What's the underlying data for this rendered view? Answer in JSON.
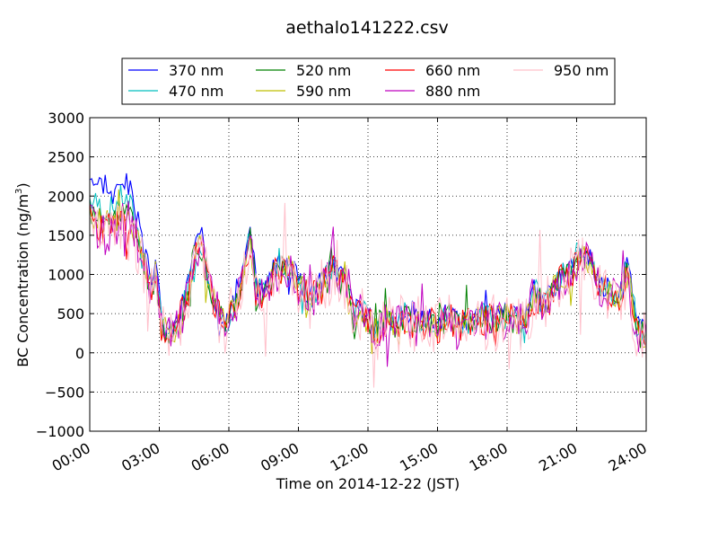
{
  "chart_data": {
    "type": "line",
    "title": "aethalo141222.csv",
    "xlabel": "Time on 2014-12-22 (JST)",
    "ylabel": "BC Concentration (ng/m",
    "ylabel_sup": "3",
    "ylabel_close": ")",
    "xlim": [
      0,
      24
    ],
    "ylim": [
      -1000,
      3000
    ],
    "x_ticks": [
      0,
      3,
      6,
      9,
      12,
      15,
      18,
      21,
      24
    ],
    "x_tick_labels": [
      "00:00",
      "03:00",
      "06:00",
      "09:00",
      "12:00",
      "15:00",
      "18:00",
      "21:00",
      "24:00"
    ],
    "y_ticks": [
      -1000,
      -500,
      0,
      500,
      1000,
      1500,
      2000,
      2500,
      3000
    ],
    "y_tick_labels": [
      "−1000",
      "−500",
      "0",
      "500",
      "1000",
      "1500",
      "2000",
      "2500",
      "3000"
    ],
    "grid": true,
    "legend_position": "top",
    "key_times": [
      0,
      0.3,
      0.7,
      1.0,
      1.4,
      1.8,
      2.0,
      2.3,
      2.6,
      2.9,
      3.1,
      3.4,
      3.8,
      4.2,
      4.5,
      4.8,
      5.2,
      5.6,
      5.9,
      6.2,
      6.5,
      6.9,
      7.2,
      7.6,
      8.0,
      8.5,
      9.0,
      9.5,
      10.0,
      10.5,
      11.0,
      11.4,
      11.7,
      12.0,
      12.4,
      12.8,
      13.2,
      13.6,
      14.0,
      14.5,
      15.0,
      15.5,
      16.0,
      16.5,
      17.0,
      17.5,
      18.0,
      18.4,
      18.8,
      19.2,
      19.6,
      20.0,
      20.4,
      20.8,
      21.2,
      21.6,
      22.0,
      22.4,
      22.8,
      23.2,
      23.6,
      24.0
    ],
    "series": [
      {
        "name": "370 nm",
        "color": "#0000ff",
        "amp": 160,
        "seed": 3,
        "values": [
          2300,
          2150,
          2200,
          1950,
          2250,
          2050,
          1800,
          1300,
          1000,
          1050,
          350,
          300,
          400,
          850,
          1350,
          1500,
          900,
          550,
          400,
          650,
          850,
          1550,
          800,
          850,
          1100,
          1150,
          950,
          750,
          900,
          1100,
          1000,
          550,
          600,
          450,
          300,
          500,
          400,
          500,
          450,
          450,
          400,
          500,
          400,
          450,
          500,
          450,
          500,
          450,
          500,
          850,
          650,
          850,
          1000,
          1100,
          1300,
          1250,
          900,
          800,
          750,
          1350,
          350,
          250
        ]
      },
      {
        "name": "470 nm",
        "color": "#00bfbf",
        "amp": 170,
        "seed": 7,
        "values": [
          1950,
          1900,
          1800,
          1850,
          2000,
          1850,
          1650,
          1200,
          950,
          950,
          320,
          280,
          380,
          780,
          1300,
          1450,
          850,
          500,
          380,
          620,
          820,
          1500,
          770,
          820,
          1070,
          1120,
          920,
          720,
          880,
          1080,
          980,
          520,
          580,
          430,
          290,
          480,
          380,
          480,
          430,
          430,
          380,
          480,
          380,
          430,
          480,
          430,
          480,
          430,
          480,
          800,
          620,
          820,
          980,
          1080,
          1270,
          1220,
          880,
          780,
          720,
          1150,
          330,
          220
        ]
      },
      {
        "name": "520 nm",
        "color": "#008000",
        "amp": 180,
        "seed": 11,
        "values": [
          1800,
          1750,
          1650,
          1700,
          1850,
          1700,
          1550,
          1150,
          900,
          900,
          300,
          260,
          360,
          740,
          1250,
          1400,
          820,
          480,
          360,
          600,
          800,
          1480,
          750,
          800,
          1050,
          1100,
          900,
          700,
          860,
          1060,
          960,
          500,
          560,
          410,
          270,
          460,
          360,
          460,
          410,
          410,
          360,
          460,
          360,
          410,
          460,
          410,
          460,
          410,
          460,
          760,
          600,
          800,
          960,
          1060,
          1250,
          1200,
          860,
          760,
          700,
          1050,
          310,
          200
        ]
      },
      {
        "name": "590 nm",
        "color": "#bfbf00",
        "amp": 190,
        "seed": 17,
        "values": [
          1750,
          1700,
          1600,
          1650,
          1800,
          1650,
          1500,
          1120,
          880,
          880,
          290,
          250,
          350,
          720,
          1230,
          1380,
          800,
          470,
          350,
          590,
          790,
          1470,
          740,
          790,
          1040,
          1090,
          890,
          690,
          850,
          1050,
          950,
          490,
          550,
          400,
          260,
          450,
          350,
          450,
          400,
          400,
          350,
          450,
          350,
          400,
          450,
          400,
          450,
          400,
          450,
          740,
          590,
          790,
          950,
          1050,
          1240,
          1190,
          850,
          750,
          690,
          1000,
          300,
          190
        ]
      },
      {
        "name": "660 nm",
        "color": "#ff0000",
        "amp": 220,
        "seed": 23,
        "values": [
          1700,
          1650,
          1550,
          1600,
          1750,
          1600,
          1450,
          1100,
          860,
          860,
          280,
          240,
          340,
          700,
          1210,
          1360,
          780,
          460,
          340,
          580,
          780,
          1460,
          730,
          780,
          1030,
          1080,
          880,
          680,
          840,
          1040,
          940,
          480,
          540,
          390,
          250,
          440,
          340,
          440,
          390,
          390,
          340,
          440,
          340,
          390,
          440,
          390,
          440,
          390,
          440,
          720,
          580,
          780,
          940,
          1040,
          1230,
          1180,
          840,
          740,
          680,
          950,
          290,
          180
        ]
      },
      {
        "name": "880 nm",
        "color": "#bf00bf",
        "amp": 260,
        "seed": 29,
        "values": [
          1650,
          1600,
          1500,
          1550,
          1700,
          1550,
          1400,
          1080,
          840,
          840,
          270,
          230,
          330,
          680,
          1200,
          1350,
          770,
          450,
          330,
          570,
          770,
          1470,
          720,
          770,
          1020,
          1070,
          870,
          670,
          830,
          1030,
          930,
          470,
          530,
          380,
          240,
          430,
          330,
          430,
          380,
          380,
          330,
          430,
          330,
          380,
          430,
          380,
          430,
          380,
          430,
          700,
          570,
          770,
          930,
          1030,
          1220,
          1170,
          830,
          730,
          670,
          900,
          280,
          170
        ]
      },
      {
        "name": "950 nm",
        "color": "#ffc0cb",
        "amp": 380,
        "seed": 37,
        "values": [
          1600,
          1550,
          1450,
          1500,
          1650,
          1500,
          1350,
          1050,
          820,
          820,
          260,
          220,
          320,
          660,
          1190,
          1340,
          760,
          440,
          320,
          560,
          760,
          1450,
          710,
          760,
          1010,
          1060,
          860,
          660,
          820,
          1020,
          920,
          460,
          520,
          370,
          230,
          420,
          320,
          420,
          370,
          370,
          320,
          420,
          320,
          370,
          420,
          370,
          420,
          370,
          420,
          680,
          560,
          760,
          920,
          1020,
          1210,
          1160,
          820,
          720,
          660,
          850,
          270,
          160
        ]
      }
    ]
  }
}
